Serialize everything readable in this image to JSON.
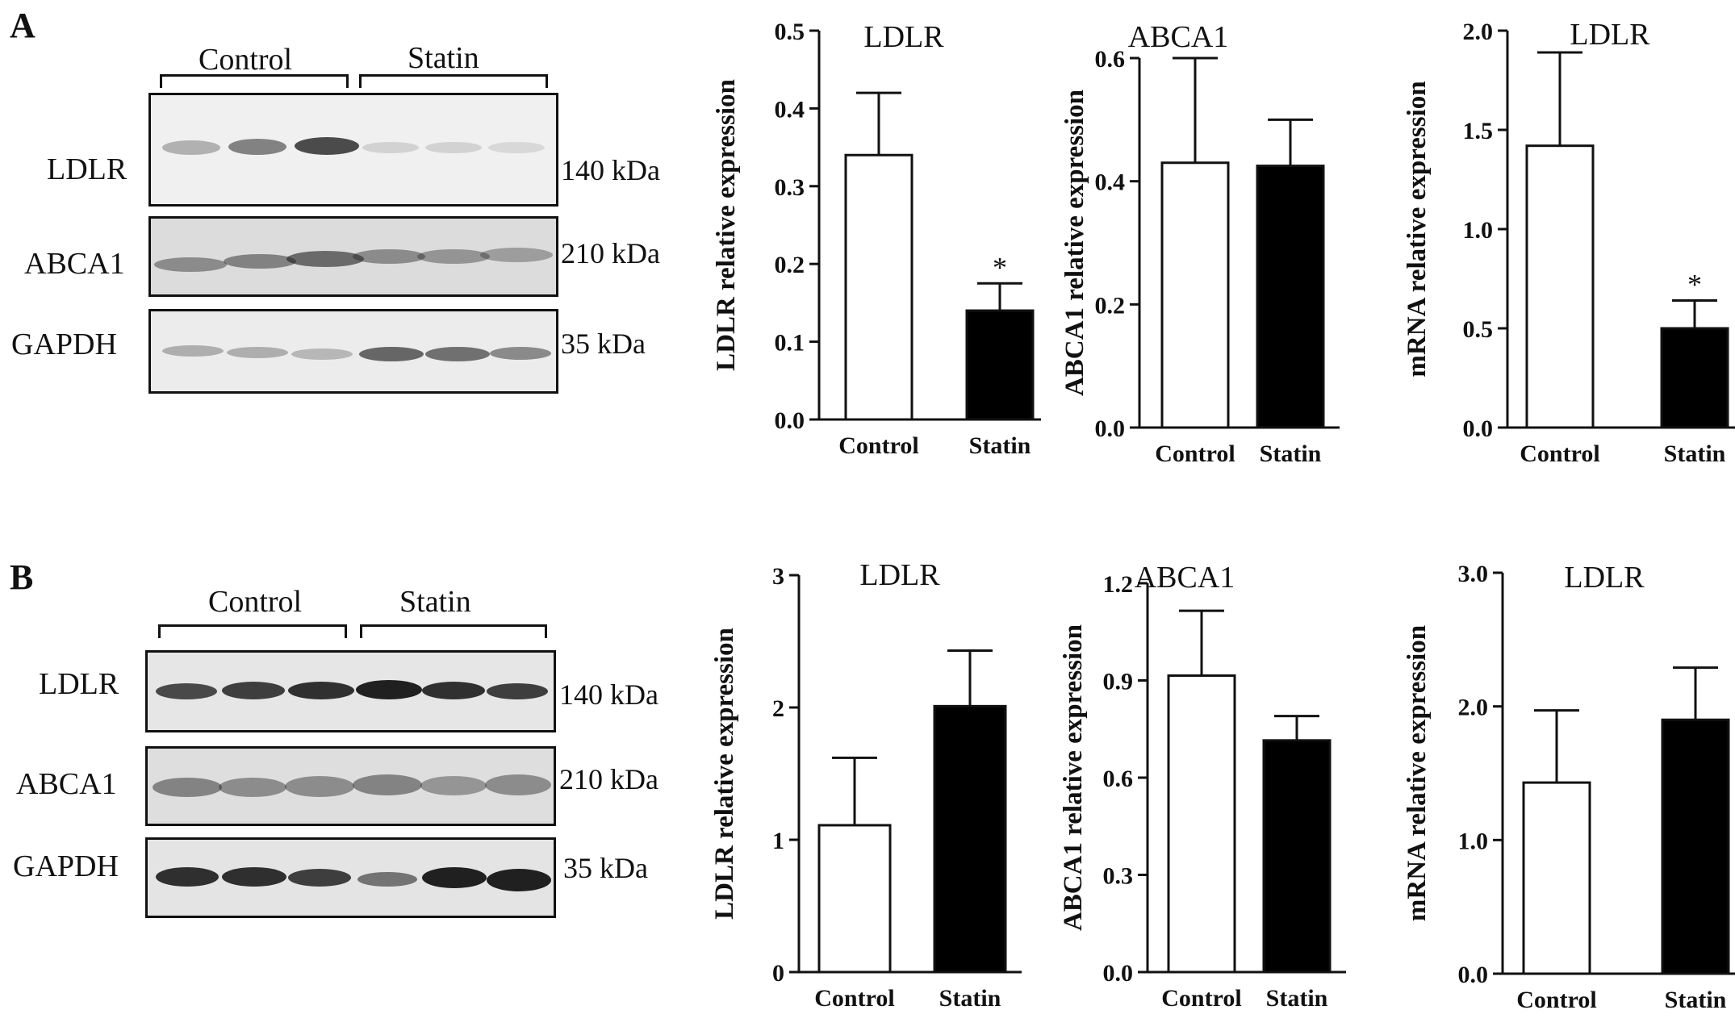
{
  "figure": {
    "panels": [
      {
        "letter": "A",
        "blot": {
          "groups": [
            "Control",
            "Statin"
          ],
          "rows": [
            {
              "protein": "LDLR",
              "size": "140 kDa"
            },
            {
              "protein": "ABCA1",
              "size": "210 kDa"
            },
            {
              "protein": "GAPDH",
              "size": "35 kDa"
            }
          ]
        }
      },
      {
        "letter": "B",
        "blot": {
          "groups": [
            "Control",
            "Statin"
          ],
          "rows": [
            {
              "protein": "LDLR",
              "size": "140 kDa"
            },
            {
              "protein": "ABCA1",
              "size": "210 kDa"
            },
            {
              "protein": "GAPDH",
              "size": "35 kDa"
            }
          ]
        }
      }
    ]
  },
  "chart_data": [
    {
      "type": "bar",
      "title": "LDLR",
      "ylabel": "LDLR relative expression",
      "categories": [
        "Control",
        "Statin"
      ],
      "values": [
        0.34,
        0.14
      ],
      "errors": [
        0.08,
        0.035
      ],
      "significance": [
        "",
        "*"
      ],
      "ylim": [
        0,
        0.5
      ],
      "yticks": [
        "0.0",
        "0.1",
        "0.2",
        "0.3",
        "0.4",
        "0.5"
      ],
      "bar_colors": [
        "#ffffff",
        "#000000"
      ]
    },
    {
      "type": "bar",
      "title": "ABCA1",
      "ylabel": "ABCA1 relative expression",
      "categories": [
        "Control",
        "Statin"
      ],
      "values": [
        0.43,
        0.425
      ],
      "errors": [
        0.17,
        0.075
      ],
      "significance": [
        "",
        ""
      ],
      "ylim": [
        0,
        0.6
      ],
      "yticks": [
        "0.0",
        "0.2",
        "0.4",
        "0.6"
      ],
      "bar_colors": [
        "#ffffff",
        "#000000"
      ]
    },
    {
      "type": "bar",
      "title": "LDLR",
      "ylabel": "mRNA relative expression",
      "categories": [
        "Control",
        "Statin"
      ],
      "values": [
        1.42,
        0.5
      ],
      "errors": [
        0.47,
        0.14
      ],
      "significance": [
        "",
        "*"
      ],
      "ylim": [
        0,
        2.0
      ],
      "yticks": [
        "0.0",
        "0.5",
        "1.0",
        "1.5",
        "2.0"
      ],
      "bar_colors": [
        "#ffffff",
        "#000000"
      ]
    },
    {
      "type": "bar",
      "title": "LDLR",
      "ylabel": "LDLR relative expression",
      "categories": [
        "Control",
        "Statin"
      ],
      "values": [
        1.11,
        2.01
      ],
      "errors": [
        0.51,
        0.42
      ],
      "significance": [
        "",
        ""
      ],
      "ylim": [
        0,
        3
      ],
      "yticks": [
        "0",
        "1",
        "2",
        "3"
      ],
      "bar_colors": [
        "#ffffff",
        "#000000"
      ]
    },
    {
      "type": "bar",
      "title": "ABCA1",
      "ylabel": "ABCA1 relative expression",
      "categories": [
        "Control",
        "Statin"
      ],
      "values": [
        0.915,
        0.715
      ],
      "errors": [
        0.2,
        0.075
      ],
      "significance": [
        "",
        ""
      ],
      "ylim": [
        0,
        1.2
      ],
      "yticks": [
        "0.0",
        "0.3",
        "0.6",
        "0.9",
        "1.2"
      ],
      "bar_colors": [
        "#ffffff",
        "#000000"
      ]
    },
    {
      "type": "bar",
      "title": "LDLR",
      "ylabel": "mRNA relative expression",
      "categories": [
        "Control",
        "Statin"
      ],
      "values": [
        1.43,
        1.9
      ],
      "errors": [
        0.54,
        0.39
      ],
      "significance": [
        "",
        ""
      ],
      "ylim": [
        0,
        3.0
      ],
      "yticks": [
        "0.0",
        "1.0",
        "2.0",
        "3.0"
      ],
      "bar_colors": [
        "#ffffff",
        "#000000"
      ]
    }
  ]
}
